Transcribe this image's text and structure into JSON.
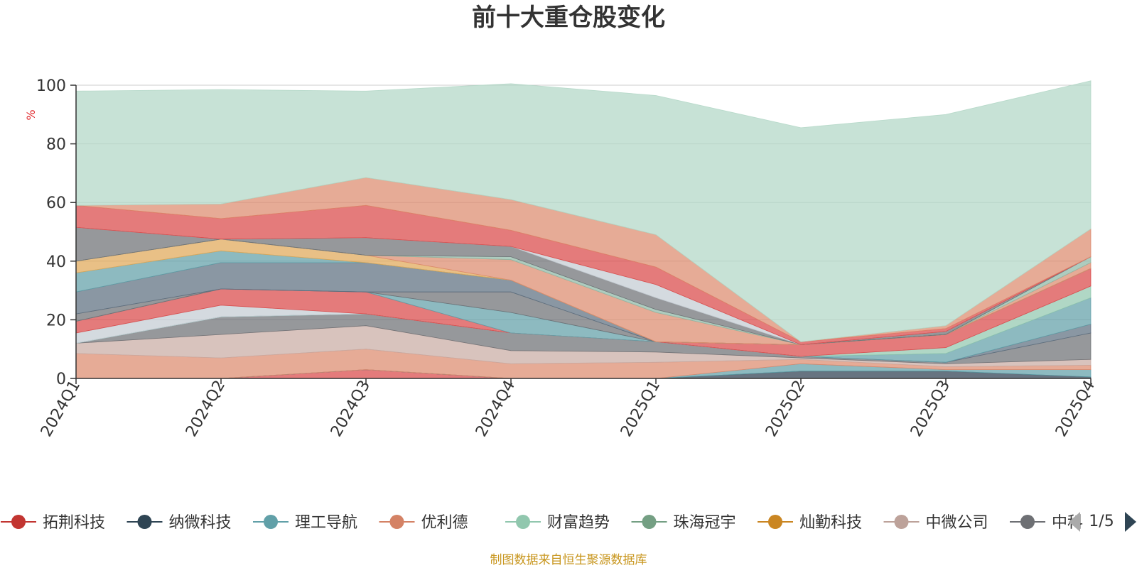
{
  "chart_data": {
    "type": "area",
    "stacked": true,
    "title": "前十大重仓股变化",
    "unit": "%",
    "categories": [
      "2024Q1",
      "2024Q2",
      "2024Q3",
      "2024Q4",
      "2025Q1",
      "2025Q2",
      "2025Q3",
      "2025Q4"
    ],
    "ylim": [
      0,
      100
    ],
    "yticks": [
      0,
      20,
      40,
      60,
      80,
      100
    ],
    "grid": true,
    "legend_position": "bottom",
    "legend_page": "1/5",
    "source": "制图数据来自恒生聚源数据库",
    "layers": [
      {
        "color": "#d94848",
        "values": [
          0,
          0,
          3,
          0,
          0,
          0,
          0,
          0
        ]
      },
      {
        "color": "#2c3e50",
        "values": [
          0,
          0,
          0,
          0,
          0,
          2.5,
          2.5,
          0.5
        ]
      },
      {
        "color": "#61a0a8",
        "values": [
          0,
          0,
          0,
          0,
          0,
          2.5,
          0.5,
          2.5
        ]
      },
      {
        "color": "#dd8a6e",
        "values": [
          8.5,
          7,
          7,
          5,
          5.5,
          1.5,
          1,
          1.5
        ]
      },
      {
        "color": "#c9aca4",
        "values": [
          3.5,
          8,
          8,
          4.5,
          3.5,
          0.5,
          1,
          2
        ]
      },
      {
        "color": "#6e7074",
        "values": [
          0,
          6,
          4,
          6,
          3.5,
          0.5,
          0.5,
          9
        ]
      },
      {
        "color": "#5d6f80",
        "values": [
          0,
          0,
          0,
          0,
          0,
          0,
          0,
          3
        ]
      },
      {
        "color": "#61a0a8",
        "values": [
          0,
          0,
          0,
          0,
          0,
          0,
          3,
          9
        ]
      },
      {
        "color": "#91c7ae",
        "values": [
          0,
          0,
          0,
          0,
          0,
          0,
          2,
          4
        ]
      },
      {
        "color": "#c4ccd3",
        "values": [
          3.5,
          4,
          0,
          0,
          0,
          0,
          0,
          0
        ]
      },
      {
        "color": "#d94848",
        "values": [
          4,
          5.5,
          7.5,
          0,
          0,
          4,
          4.5,
          6
        ]
      },
      {
        "color": "#61a0a8",
        "values": [
          0,
          0,
          0,
          7,
          0,
          0,
          0,
          0
        ]
      },
      {
        "color": "#6e7074",
        "values": [
          2.5,
          0,
          0,
          7,
          0,
          0,
          0,
          0
        ]
      },
      {
        "color": "#5d6f80",
        "values": [
          7.5,
          9,
          10,
          4,
          0,
          0,
          0,
          0
        ]
      },
      {
        "color": "#61a0a8",
        "values": [
          6.5,
          4,
          0,
          0,
          0,
          0,
          0,
          0
        ]
      },
      {
        "color": "#e0a857",
        "values": [
          4,
          4,
          2.5,
          0,
          0,
          0,
          0,
          0
        ]
      },
      {
        "color": "#dd8a6e",
        "values": [
          0,
          0,
          0,
          7,
          10,
          0,
          0,
          2
        ]
      },
      {
        "color": "#8fb9a6",
        "values": [
          0,
          0,
          0,
          1,
          1,
          0,
          0,
          2
        ]
      },
      {
        "color": "#6e7074",
        "values": [
          11.5,
          0,
          6,
          3.5,
          4,
          0,
          1,
          0
        ]
      },
      {
        "color": "#c4ccd3",
        "values": [
          0,
          0,
          0,
          0,
          4.5,
          0,
          0,
          0
        ]
      },
      {
        "color": "#d94848",
        "values": [
          7.5,
          7,
          11,
          5.5,
          6,
          1,
          1,
          0
        ]
      },
      {
        "color": "#dd8a6e",
        "values": [
          0,
          5,
          9.5,
          10.5,
          11,
          0,
          1,
          9.5
        ]
      },
      {
        "color": "#b2d7c6",
        "values": [
          39,
          39,
          29.5,
          39.5,
          47.5,
          73,
          72,
          50.5
        ]
      }
    ],
    "series": [
      {
        "name": "拓荆科技",
        "color": "#c23531"
      },
      {
        "name": "纳微科技",
        "color": "#2f4554"
      },
      {
        "name": "理工导航",
        "color": "#61a0a8"
      },
      {
        "name": "优利德",
        "color": "#d48265"
      },
      {
        "name": "财富趋势",
        "color": "#91c7ae"
      },
      {
        "name": "珠海冠宇",
        "color": "#749f83"
      },
      {
        "name": "灿勤科技",
        "color": "#ca8622"
      },
      {
        "name": "中微公司",
        "color": "#bda29a"
      },
      {
        "name": "中科",
        "color": "#6e7074"
      }
    ]
  }
}
